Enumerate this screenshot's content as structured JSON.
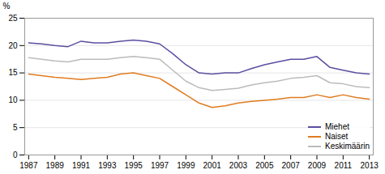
{
  "chart_data": {
    "type": "line",
    "ylabel": "%",
    "x": [
      1987,
      1988,
      1989,
      1990,
      1991,
      1992,
      1993,
      1994,
      1995,
      1996,
      1997,
      1998,
      1999,
      2000,
      2001,
      2002,
      2003,
      2004,
      2005,
      2006,
      2007,
      2008,
      2009,
      2010,
      2011,
      2012,
      2013
    ],
    "series": [
      {
        "name": "Miehet",
        "color": "#5b4ea0",
        "values": [
          20.5,
          20.3,
          20.0,
          19.8,
          20.8,
          20.5,
          20.5,
          20.8,
          21.0,
          20.8,
          20.3,
          18.5,
          16.5,
          15.0,
          14.8,
          15.0,
          15.0,
          15.8,
          16.5,
          17.0,
          17.5,
          17.5,
          18.0,
          16.0,
          15.5,
          15.0,
          14.8
        ]
      },
      {
        "name": "Naiset",
        "color": "#e07b20",
        "values": [
          14.8,
          14.5,
          14.2,
          14.0,
          13.8,
          14.0,
          14.2,
          14.8,
          15.0,
          14.5,
          14.0,
          12.5,
          11.0,
          9.5,
          8.7,
          9.0,
          9.5,
          9.8,
          10.0,
          10.2,
          10.5,
          10.5,
          11.0,
          10.5,
          11.0,
          10.5,
          10.2
        ]
      },
      {
        "name": "Keskimäärin",
        "color": "#bbbbbb",
        "values": [
          17.8,
          17.5,
          17.2,
          17.0,
          17.5,
          17.5,
          17.5,
          17.8,
          18.0,
          17.8,
          17.5,
          15.5,
          13.5,
          12.3,
          11.8,
          12.0,
          12.2,
          12.8,
          13.2,
          13.5,
          14.0,
          14.2,
          14.5,
          13.2,
          13.0,
          12.5,
          12.3
        ]
      }
    ],
    "xlim": [
      1986.7,
      2013.3
    ],
    "xticks": [
      1987,
      1989,
      1991,
      1993,
      1995,
      1997,
      1999,
      2001,
      2003,
      2005,
      2007,
      2009,
      2011,
      2013
    ],
    "ylim": [
      0,
      25
    ],
    "yticks": [
      0,
      5,
      10,
      15,
      20,
      25
    ],
    "grid": true,
    "legend": "lower right"
  }
}
